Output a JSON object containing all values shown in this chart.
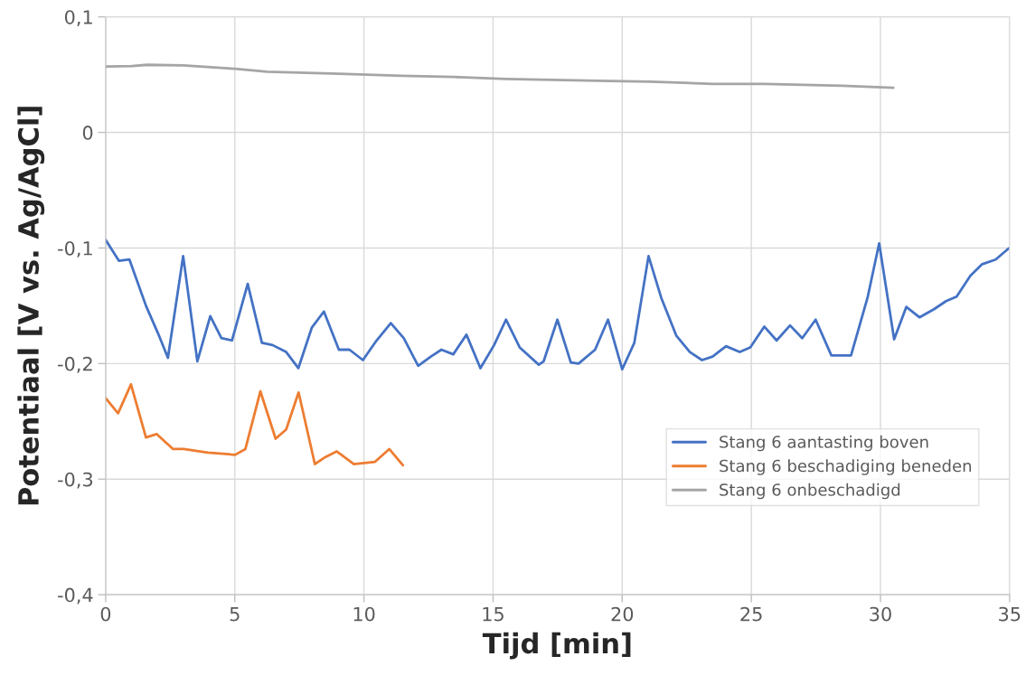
{
  "chart_data": {
    "type": "line",
    "xlabel": "Tijd [min]",
    "ylabel": "Potentiaal [V vs. Ag/AgCl]",
    "xlim": [
      0,
      35
    ],
    "xticks": [
      0,
      5,
      10,
      15,
      20,
      25,
      30,
      35
    ],
    "ylim": [
      -0.4,
      0.1
    ],
    "yticks": [
      {
        "value": -0.4,
        "label": "-0,4"
      },
      {
        "value": -0.3,
        "label": "-0,3"
      },
      {
        "value": -0.2,
        "label": "-0,2"
      },
      {
        "value": -0.1,
        "label": "-0,1"
      },
      0,
      {
        "value": 0.1,
        "label": "0,1"
      }
    ],
    "grid": true,
    "legend": "bottom right",
    "series": [
      {
        "name": "Stang 6 aantasting boven",
        "color": "#4472c4",
        "x": [
          0,
          0.51,
          0.92,
          1.56,
          2.03,
          2.41,
          3.0,
          3.55,
          4.05,
          4.48,
          4.89,
          5.5,
          6.05,
          6.46,
          6.99,
          7.46,
          7.98,
          8.45,
          9.03,
          9.44,
          9.96,
          10.49,
          11.04,
          11.54,
          12.1,
          12.59,
          13.0,
          13.46,
          13.97,
          14.51,
          15.04,
          15.5,
          16.03,
          16.77,
          16.96,
          17.49,
          18.01,
          18.31,
          18.95,
          19.45,
          20.0,
          20.47,
          21.02,
          21.51,
          22.1,
          22.62,
          23.09,
          23.5,
          24.02,
          24.55,
          24.96,
          25.5,
          25.98,
          26.5,
          26.97,
          27.49,
          28.1,
          28.52,
          28.86,
          29.5,
          29.95,
          30.53,
          31.0,
          31.51,
          32.07,
          32.54,
          32.95,
          33.48,
          33.94,
          34.46,
          34.93,
          35
        ],
        "values": [
          -0.093,
          -0.111,
          -0.11,
          -0.15,
          -0.174,
          -0.195,
          -0.107,
          -0.198,
          -0.159,
          -0.178,
          -0.18,
          -0.131,
          -0.182,
          -0.184,
          -0.19,
          -0.204,
          -0.169,
          -0.155,
          -0.188,
          -0.188,
          -0.197,
          -0.18,
          -0.165,
          -0.178,
          -0.202,
          -0.194,
          -0.188,
          -0.192,
          -0.175,
          -0.204,
          -0.184,
          -0.162,
          -0.186,
          -0.201,
          -0.198,
          -0.162,
          -0.199,
          -0.2,
          -0.188,
          -0.162,
          -0.205,
          -0.182,
          -0.107,
          -0.143,
          -0.176,
          -0.19,
          -0.197,
          -0.194,
          -0.185,
          -0.19,
          -0.186,
          -0.168,
          -0.18,
          -0.167,
          -0.178,
          -0.162,
          -0.193,
          -0.193,
          -0.193,
          -0.143,
          -0.096,
          -0.179,
          -0.151,
          -0.16,
          -0.153,
          -0.146,
          -0.142,
          -0.124,
          -0.114,
          -0.11,
          -0.101,
          -0.1
        ]
      },
      {
        "name": "Stang 6 beschadiging beneden",
        "color": "#ed7d31",
        "x": [
          0,
          0.48,
          0.98,
          1.56,
          1.97,
          2.61,
          3.02,
          3.95,
          4.54,
          5.01,
          5.41,
          5.99,
          6.58,
          6.99,
          7.47,
          8.1,
          8.5,
          8.95,
          9.61,
          10.43,
          10.98,
          11.51
        ],
        "values": [
          -0.23,
          -0.243,
          -0.218,
          -0.264,
          -0.261,
          -0.274,
          -0.274,
          -0.277,
          -0.278,
          -0.279,
          -0.274,
          -0.224,
          -0.265,
          -0.257,
          -0.225,
          -0.287,
          -0.281,
          -0.276,
          -0.287,
          -0.285,
          -0.274,
          -0.288
        ]
      },
      {
        "name": "Stang 6 onbeschadigd",
        "color": "#a5a5a5",
        "x": [
          0,
          1.0,
          1.6,
          3.02,
          5.03,
          6.24,
          9.05,
          11.46,
          13.47,
          15.48,
          19.5,
          21.1,
          23.5,
          25.5,
          28.5,
          30.5
        ],
        "values": [
          0.057,
          0.0575,
          0.0585,
          0.058,
          0.055,
          0.0526,
          0.0508,
          0.049,
          0.048,
          0.0463,
          0.0446,
          0.044,
          0.042,
          0.042,
          0.0405,
          0.0387
        ]
      }
    ]
  }
}
